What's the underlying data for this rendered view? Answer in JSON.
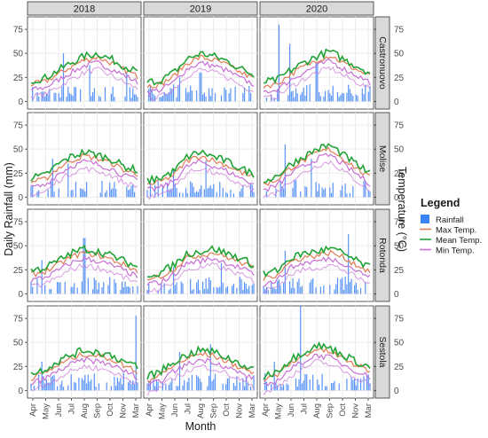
{
  "chart_data": {
    "type": "faceted line + bar",
    "columns": [
      "2018",
      "2019",
      "2020"
    ],
    "rows": [
      "Castronuovo",
      "Molise",
      "Rotonda",
      "Sestola"
    ],
    "xlabel": "Month",
    "ylabel_left": "Daily Rainfall (mm)",
    "ylabel_right": "Temperature (°C)",
    "x_ticks": [
      "Apr",
      "May",
      "Jun",
      "Jul",
      "Aug",
      "Sep",
      "Oct",
      "Nov",
      "Mar"
    ],
    "y_ticks": [
      0,
      25,
      50,
      75
    ],
    "ylim": [
      -8,
      88
    ],
    "legend": {
      "title": "Legend",
      "position": "right",
      "items": [
        {
          "label": "Rainfall",
          "color": "#3b82f6",
          "kind": "box"
        },
        {
          "label": "Max Temp.",
          "color": "#e07b53",
          "kind": "line"
        },
        {
          "label": "Mean Temp.",
          "color": "#21a336",
          "kind": "line"
        },
        {
          "label": "Min Temp.",
          "color": "#c86fd6",
          "kind": "line"
        }
      ]
    },
    "grid": true,
    "panels": [
      {
        "row": "Castronuovo",
        "col": "2018",
        "mean": [
          20,
          22,
          30,
          38,
          45,
          48,
          42,
          35,
          28
        ],
        "rain_peaks": [
          [
            0.3,
            50
          ],
          [
            0.55,
            38
          ],
          [
            0.9,
            30
          ]
        ]
      },
      {
        "row": "Castronuovo",
        "col": "2019",
        "mean": [
          18,
          20,
          28,
          42,
          48,
          45,
          40,
          32,
          26
        ],
        "rain_peaks": [
          [
            0.3,
            25
          ],
          [
            0.5,
            30
          ]
        ]
      },
      {
        "row": "Castronuovo",
        "col": "2020",
        "mean": [
          18,
          20,
          30,
          38,
          45,
          50,
          42,
          35,
          28
        ],
        "rain_peaks": [
          [
            0.15,
            80
          ],
          [
            0.25,
            60
          ],
          [
            0.5,
            40
          ]
        ]
      },
      {
        "row": "Molise",
        "col": "2018",
        "mean": [
          18,
          20,
          32,
          40,
          45,
          42,
          38,
          30,
          26
        ],
        "rain_peaks": [
          [
            0.2,
            40
          ],
          [
            0.35,
            35
          ]
        ]
      },
      {
        "row": "Molise",
        "col": "2019",
        "mean": [
          15,
          18,
          25,
          40,
          45,
          40,
          35,
          28,
          22
        ],
        "rain_peaks": [
          [
            0.25,
            30
          ],
          [
            0.55,
            38
          ]
        ]
      },
      {
        "row": "Molise",
        "col": "2020",
        "mean": [
          15,
          20,
          32,
          40,
          48,
          52,
          42,
          32,
          22
        ],
        "rain_peaks": [
          [
            0.2,
            55
          ],
          [
            0.45,
            40
          ]
        ]
      },
      {
        "row": "Rotonda",
        "col": "2018",
        "mean": [
          22,
          25,
          32,
          40,
          45,
          42,
          38,
          32,
          26
        ],
        "rain_peaks": [
          [
            0.1,
            35
          ],
          [
            0.5,
            58
          ]
        ]
      },
      {
        "row": "Rotonda",
        "col": "2019",
        "mean": [
          18,
          20,
          28,
          40,
          42,
          45,
          40,
          35,
          28
        ],
        "rain_peaks": [
          [
            0.25,
            28
          ],
          [
            0.7,
            32
          ]
        ]
      },
      {
        "row": "Rotonda",
        "col": "2020",
        "mean": [
          18,
          22,
          35,
          40,
          42,
          45,
          40,
          32,
          25
        ],
        "rain_peaks": [
          [
            0.2,
            45
          ],
          [
            0.8,
            62
          ]
        ]
      },
      {
        "row": "Sestola",
        "col": "2018",
        "mean": [
          15,
          20,
          28,
          35,
          40,
          38,
          35,
          28,
          22
        ],
        "rain_peaks": [
          [
            0.1,
            30
          ],
          [
            0.98,
            78
          ]
        ]
      },
      {
        "row": "Sestola",
        "col": "2019",
        "mean": [
          12,
          18,
          28,
          35,
          40,
          38,
          32,
          26,
          20
        ],
        "rain_peaks": [
          [
            0.3,
            40
          ],
          [
            0.6,
            48
          ]
        ]
      },
      {
        "row": "Sestola",
        "col": "2020",
        "mean": [
          12,
          18,
          30,
          38,
          45,
          42,
          35,
          28,
          22
        ],
        "rain_peaks": [
          [
            0.1,
            30
          ],
          [
            0.35,
            88
          ]
        ]
      }
    ]
  }
}
